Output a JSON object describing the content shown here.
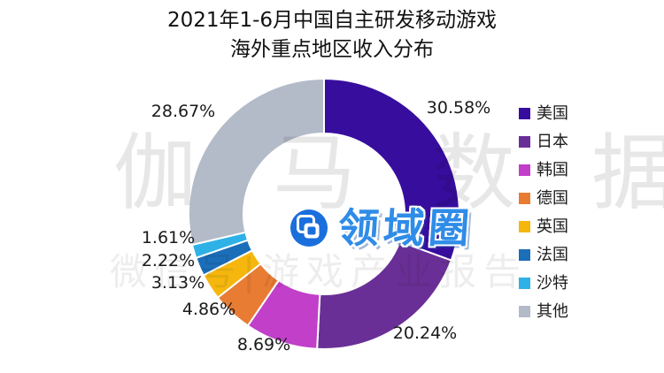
{
  "title": {
    "line1": "2021年1-6月中国自主研发移动游戏",
    "line2": "海外重点地区收入分布"
  },
  "watermarks": {
    "background_text": "伽马数据",
    "background_subtext": "微信号|游戏产业报告",
    "logo_text": "领域圈"
  },
  "logo_colors": {
    "circle": "#1a6fdd",
    "text": "#2f8ce8"
  },
  "chart_data": {
    "type": "pie",
    "subtype": "donut",
    "title": "2021年1-6月中国自主研发移动游戏海外重点地区收入分布",
    "categories": [
      "美国",
      "日本",
      "韩国",
      "德国",
      "英国",
      "法国",
      "沙特",
      "其他"
    ],
    "values": [
      30.58,
      20.24,
      8.69,
      4.86,
      3.13,
      2.22,
      1.61,
      28.67
    ],
    "labels": [
      "30.58%",
      "20.24%",
      "8.69%",
      "4.86%",
      "3.13%",
      "2.22%",
      "1.61%",
      "28.67%"
    ],
    "value_unit": "%",
    "colors": [
      "#370d9e",
      "#6a2f96",
      "#c13fc9",
      "#e87c33",
      "#f5b70d",
      "#1b6eb8",
      "#2eb1e6",
      "#b3bac8"
    ],
    "start_angle_deg": 0,
    "direction": "clockwise",
    "legend_position": "right"
  }
}
